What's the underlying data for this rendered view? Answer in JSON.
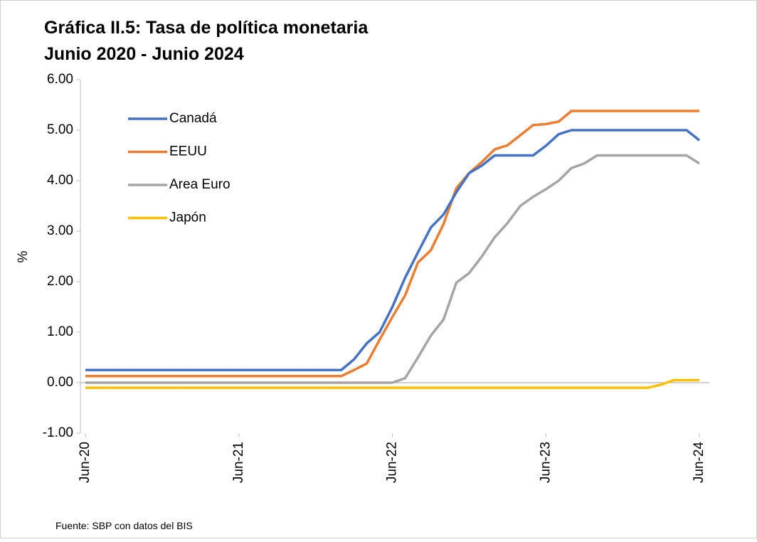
{
  "chart_data": {
    "type": "line",
    "title": "Gráfica II.5:  Tasa de política monetaria",
    "subtitle": "Junio 2020  -  Junio 2024",
    "y_label": "%",
    "source": "Fuente: SBP con datos del BIS",
    "categories": [
      "Jun-20",
      null,
      null,
      null,
      null,
      null,
      null,
      null,
      null,
      null,
      null,
      null,
      "Jun-21",
      null,
      null,
      null,
      null,
      null,
      null,
      null,
      null,
      null,
      null,
      null,
      "Jun-22",
      null,
      null,
      null,
      null,
      null,
      null,
      null,
      null,
      null,
      null,
      null,
      "Jun-23",
      null,
      null,
      null,
      null,
      null,
      null,
      null,
      null,
      null,
      null,
      null,
      "Jun-24"
    ],
    "ylim": [
      -1,
      6
    ],
    "yticks": [
      {
        "value": -1,
        "label": "-1.00"
      },
      {
        "value": 0,
        "label": "0.00"
      },
      {
        "value": 1,
        "label": "1.00"
      },
      {
        "value": 2,
        "label": "2.00"
      },
      {
        "value": 3,
        "label": "3.00"
      },
      {
        "value": 4,
        "label": "4.00"
      },
      {
        "value": 5,
        "label": "5.00"
      },
      {
        "value": 6,
        "label": "6.00"
      }
    ],
    "legend": "upper left",
    "series": [
      {
        "name": "Canadá",
        "color": "#4472c4",
        "values": [
          0.25,
          0.25,
          0.25,
          0.25,
          0.25,
          0.25,
          0.25,
          0.25,
          0.25,
          0.25,
          0.25,
          0.25,
          0.25,
          0.25,
          0.25,
          0.25,
          0.25,
          0.25,
          0.25,
          0.25,
          0.25,
          0.46,
          0.78,
          1.0,
          1.5,
          2.08,
          2.58,
          3.07,
          3.33,
          3.77,
          4.15,
          4.3,
          4.5,
          4.5,
          4.5,
          4.5,
          4.69,
          4.92,
          5.0,
          5.0,
          5.0,
          5.0,
          5.0,
          5.0,
          5.0,
          5.0,
          5.0,
          5.0,
          4.8
        ]
      },
      {
        "name": "EEUU",
        "color": "#ed7d31",
        "values": [
          0.13,
          0.13,
          0.13,
          0.13,
          0.13,
          0.13,
          0.13,
          0.13,
          0.13,
          0.13,
          0.13,
          0.13,
          0.13,
          0.13,
          0.13,
          0.13,
          0.13,
          0.13,
          0.13,
          0.13,
          0.13,
          0.25,
          0.38,
          0.85,
          1.3,
          1.73,
          2.38,
          2.62,
          3.14,
          3.85,
          4.15,
          4.37,
          4.62,
          4.7,
          4.9,
          5.1,
          5.12,
          5.17,
          5.38,
          5.38,
          5.38,
          5.38,
          5.38,
          5.38,
          5.38,
          5.38,
          5.38,
          5.38,
          5.38
        ]
      },
      {
        "name": "Area Euro",
        "color": "#a5a5a5",
        "values": [
          0,
          0,
          0,
          0,
          0,
          0,
          0,
          0,
          0,
          0,
          0,
          0,
          0,
          0,
          0,
          0,
          0,
          0,
          0,
          0,
          0,
          0,
          0,
          0,
          0,
          0.09,
          0.5,
          0.93,
          1.25,
          1.98,
          2.17,
          2.5,
          2.88,
          3.16,
          3.5,
          3.68,
          3.83,
          4.0,
          4.25,
          4.34,
          4.5,
          4.5,
          4.5,
          4.5,
          4.5,
          4.5,
          4.5,
          4.5,
          4.34
        ]
      },
      {
        "name": "Japón",
        "color": "#ffc000",
        "values": [
          -0.1,
          -0.1,
          -0.1,
          -0.1,
          -0.1,
          -0.1,
          -0.1,
          -0.1,
          -0.1,
          -0.1,
          -0.1,
          -0.1,
          -0.1,
          -0.1,
          -0.1,
          -0.1,
          -0.1,
          -0.1,
          -0.1,
          -0.1,
          -0.1,
          -0.1,
          -0.1,
          -0.1,
          -0.1,
          -0.1,
          -0.1,
          -0.1,
          -0.1,
          -0.1,
          -0.1,
          -0.1,
          -0.1,
          -0.1,
          -0.1,
          -0.1,
          -0.1,
          -0.1,
          -0.1,
          -0.1,
          -0.1,
          -0.1,
          -0.1,
          -0.1,
          -0.1,
          -0.04,
          0.05,
          0.05,
          0.05
        ]
      }
    ]
  }
}
